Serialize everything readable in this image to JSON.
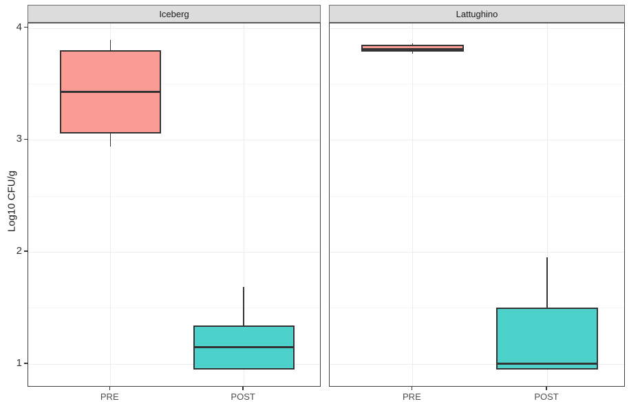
{
  "figure": {
    "colors": {
      "background": "#FFFFFF",
      "panel_background": "#FFFFFF",
      "panel_border": "#3F3F3F",
      "grid_major": "#ECECEC",
      "grid_minor": "#F5F5F5",
      "strip_background": "#DCDCDC",
      "strip_border": "#6F6F6F",
      "box_border": "#333333",
      "pre_fill": "#FA9B96",
      "post_fill": "#4DD2CB",
      "tick_text": "#333333",
      "axis_text": "#4D4D4D"
    }
  },
  "chart_data": {
    "type": "boxplot",
    "title": "",
    "xlabel": "",
    "ylabel": "Log10 CFU/g",
    "ylim": [
      0.79,
      4.04
    ],
    "y_ticks": [
      1,
      2,
      3,
      4
    ],
    "y_minor_ticks": [
      1.5,
      2.5,
      3.5
    ],
    "categories": [
      "PRE",
      "POST"
    ],
    "grid": "on",
    "legend": "none",
    "facets": [
      {
        "label": "Iceberg",
        "boxes": [
          {
            "category": "PRE",
            "fill": "#FA9B96",
            "min": 2.94,
            "q1": 3.06,
            "median": 3.43,
            "q3": 3.8,
            "max": 3.89
          },
          {
            "category": "POST",
            "fill": "#4DD2CB",
            "min": 0.95,
            "q1": 0.95,
            "median": 1.15,
            "q3": 1.34,
            "max": 1.69
          }
        ]
      },
      {
        "label": "Lattughino",
        "boxes": [
          {
            "category": "PRE",
            "fill": "#FA9B96",
            "min": 3.77,
            "q1": 3.79,
            "median": 3.81,
            "q3": 3.85,
            "max": 3.86
          },
          {
            "category": "POST",
            "fill": "#4DD2CB",
            "min": 0.95,
            "q1": 0.95,
            "median": 1.0,
            "q3": 1.5,
            "max": 1.95
          }
        ]
      }
    ]
  }
}
